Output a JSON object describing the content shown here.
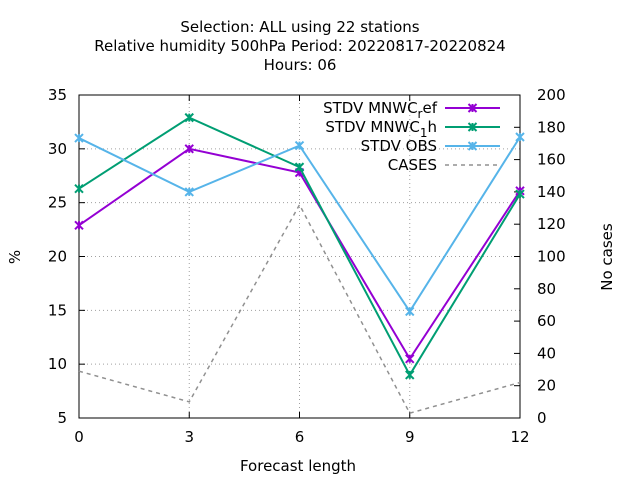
{
  "chart_data": {
    "type": "line",
    "title_lines": [
      "Selection: ALL using    22 stations",
      "Relative humidity 500hPa   Period: 20220817-20220824",
      "Hours:  06"
    ],
    "xlabel": "Forecast length",
    "ylabel": "%",
    "y2label": "No cases",
    "x": [
      0,
      3,
      6,
      9,
      12
    ],
    "x_ticks": [
      "0",
      "3",
      "6",
      "9",
      "12"
    ],
    "xlim": [
      0,
      12
    ],
    "ylim": [
      5,
      35
    ],
    "y_ticks": [
      "5",
      "10",
      "15",
      "20",
      "25",
      "30",
      "35"
    ],
    "y2lim": [
      0,
      200
    ],
    "y2_ticks": [
      "0",
      "20",
      "40",
      "60",
      "80",
      "100",
      "120",
      "140",
      "160",
      "180",
      "200"
    ],
    "grid": true,
    "legend_position": "top-right",
    "series": [
      {
        "name": "STDV MNWC_ref",
        "legend_main": "STDV MNWC",
        "legend_sub": "r",
        "legend_tail": "ef",
        "color": "#9400d3",
        "axis": "y",
        "style": "solid",
        "marker": "x",
        "values": [
          22.9,
          30.0,
          27.8,
          10.5,
          26.1
        ]
      },
      {
        "name": "STDV MNWC_1h",
        "legend_main": "STDV MNWC",
        "legend_sub": "1",
        "legend_tail": "h",
        "color": "#009e73",
        "axis": "y",
        "style": "solid",
        "marker": "x",
        "values": [
          26.3,
          32.9,
          28.3,
          9.0,
          25.8
        ]
      },
      {
        "name": "STDV OBS",
        "legend_main": "STDV OBS",
        "legend_sub": "",
        "legend_tail": "",
        "color": "#56b4e9",
        "axis": "y",
        "style": "solid",
        "marker": "x",
        "values": [
          31.0,
          26.0,
          30.3,
          14.9,
          31.1
        ]
      },
      {
        "name": "CASES",
        "legend_main": "CASES",
        "legend_sub": "",
        "legend_tail": "",
        "color": "#909090",
        "axis": "y2",
        "style": "dashed",
        "marker": "none",
        "values": [
          29,
          10,
          132,
          3,
          22
        ]
      }
    ]
  }
}
